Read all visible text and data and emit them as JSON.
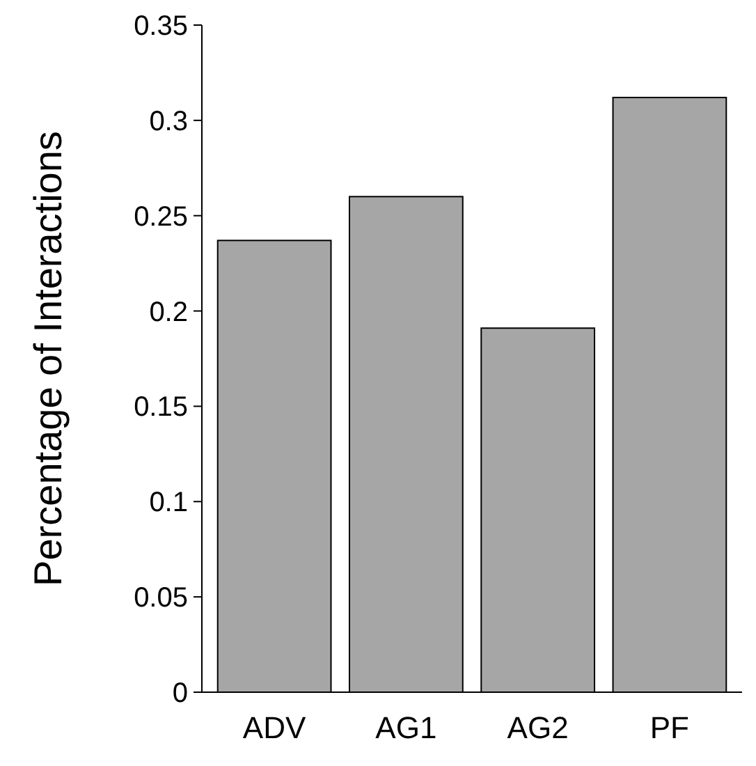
{
  "chart_data": {
    "type": "bar",
    "ylabel": "Percentage of Interactions",
    "categories": [
      "ADV",
      "AG1",
      "AG2",
      "PF"
    ],
    "values": [
      0.237,
      0.26,
      0.191,
      0.312
    ],
    "color": "#a6a6a6",
    "ylim": [
      0,
      0.35
    ],
    "yticks": [
      0,
      0.05,
      0.1,
      0.15,
      0.2,
      0.25,
      0.3,
      0.35
    ],
    "grid": false
  }
}
